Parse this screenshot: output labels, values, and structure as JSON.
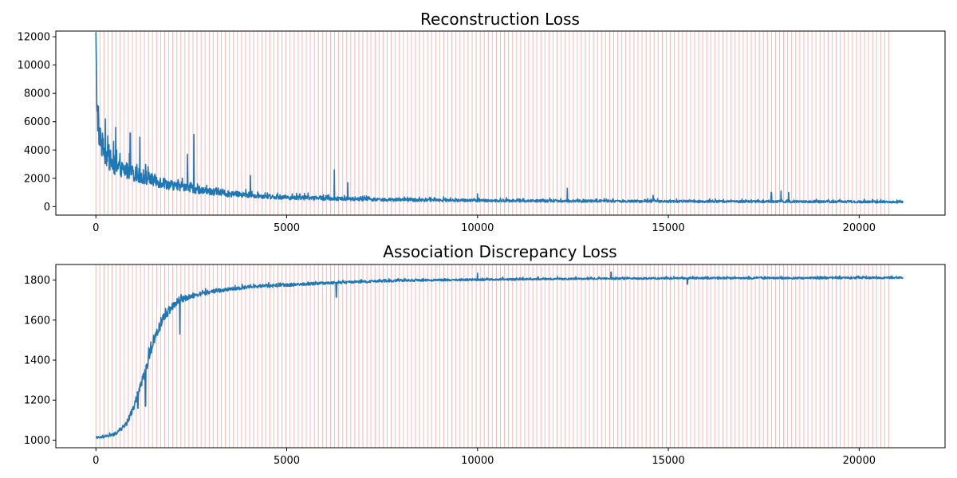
{
  "colors": {
    "series": "#1f77b4",
    "epoch_marker": "#f08080",
    "axes": "#000000",
    "background": "#ffffff"
  },
  "chart_data": [
    {
      "type": "line",
      "title": "Reconstruction Loss",
      "xlabel": "",
      "ylabel": "",
      "xlim": [
        -1050,
        22250
      ],
      "ylim": [
        -600,
        12400
      ],
      "xticks": [
        0,
        5000,
        10000,
        15000,
        20000
      ],
      "yticks": [
        0,
        2000,
        4000,
        6000,
        8000,
        10000,
        12000
      ],
      "grid": false,
      "legend": "none",
      "vertical_markers": {
        "start": 0,
        "end": 20800,
        "step": 106
      },
      "series": [
        {
          "values_description": "noisy per-iteration loss",
          "x": [
            0,
            20,
            60,
            150,
            300,
            500,
            800,
            1200,
            1600,
            2000,
            2500,
            3000,
            3500,
            4000,
            5000,
            6000,
            7000,
            8000,
            9000,
            10000,
            11000,
            12000,
            13000,
            14000,
            15000,
            16000,
            17000,
            18000,
            19000,
            20000,
            21150
          ],
          "y": [
            11800,
            8000,
            5500,
            4300,
            3500,
            2900,
            2500,
            2100,
            1800,
            1500,
            1250,
            1050,
            900,
            800,
            650,
            580,
            520,
            480,
            450,
            430,
            410,
            400,
            390,
            380,
            370,
            360,
            355,
            350,
            345,
            340,
            330
          ],
          "noise_amplitude": [
            3000,
            2800,
            2500,
            2200,
            2000,
            1800,
            1500,
            1300,
            1100,
            900,
            750,
            650,
            550,
            450,
            400,
            350,
            300,
            280,
            260,
            250,
            240,
            230,
            220,
            220,
            210,
            210,
            200,
            200,
            200,
            200,
            200
          ],
          "spikes": [
            [
              250,
              6200
            ],
            [
              520,
              5600
            ],
            [
              900,
              5200
            ],
            [
              1150,
              4900
            ],
            [
              2400,
              3700
            ],
            [
              2570,
              5100
            ],
            [
              4050,
              2200
            ],
            [
              6250,
              2600
            ],
            [
              6600,
              1700
            ],
            [
              10000,
              900
            ],
            [
              12350,
              1300
            ],
            [
              14600,
              800
            ],
            [
              17700,
              1000
            ],
            [
              17950,
              1100
            ],
            [
              18150,
              1000
            ]
          ]
        }
      ]
    },
    {
      "type": "line",
      "title": "Association Discrepancy Loss",
      "xlabel": "",
      "ylabel": "",
      "xlim": [
        -1050,
        22250
      ],
      "ylim": [
        962,
        1878
      ],
      "xticks": [
        0,
        5000,
        10000,
        15000,
        20000
      ],
      "yticks": [
        1000,
        1200,
        1400,
        1600,
        1800
      ],
      "grid": false,
      "legend": "none",
      "vertical_markers": {
        "start": 0,
        "end": 20800,
        "step": 106
      },
      "series": [
        {
          "values_description": "noisy per-iteration loss",
          "x": [
            0,
            300,
            500,
            800,
            1000,
            1200,
            1400,
            1600,
            1800,
            2000,
            2200,
            2500,
            3000,
            3500,
            4000,
            5000,
            6000,
            7000,
            8000,
            10000,
            12000,
            14000,
            16000,
            18000,
            20000,
            21150
          ],
          "y": [
            1010,
            1020,
            1030,
            1080,
            1170,
            1290,
            1420,
            1540,
            1620,
            1670,
            1700,
            1720,
            1740,
            1755,
            1765,
            1775,
            1785,
            1792,
            1798,
            1802,
            1806,
            1808,
            1810,
            1810,
            1811,
            1812
          ],
          "noise_amplitude": [
            15,
            15,
            20,
            30,
            40,
            60,
            70,
            60,
            60,
            50,
            40,
            30,
            25,
            22,
            20,
            18,
            16,
            15,
            14,
            12,
            12,
            12,
            12,
            12,
            12,
            12
          ],
          "spikes": [
            [
              2200,
              1530
            ],
            [
              1100,
              1160
            ],
            [
              1300,
              1170
            ],
            [
              6300,
              1715
            ],
            [
              10000,
              1835
            ],
            [
              13500,
              1840
            ],
            [
              15500,
              1780
            ]
          ]
        }
      ]
    }
  ]
}
